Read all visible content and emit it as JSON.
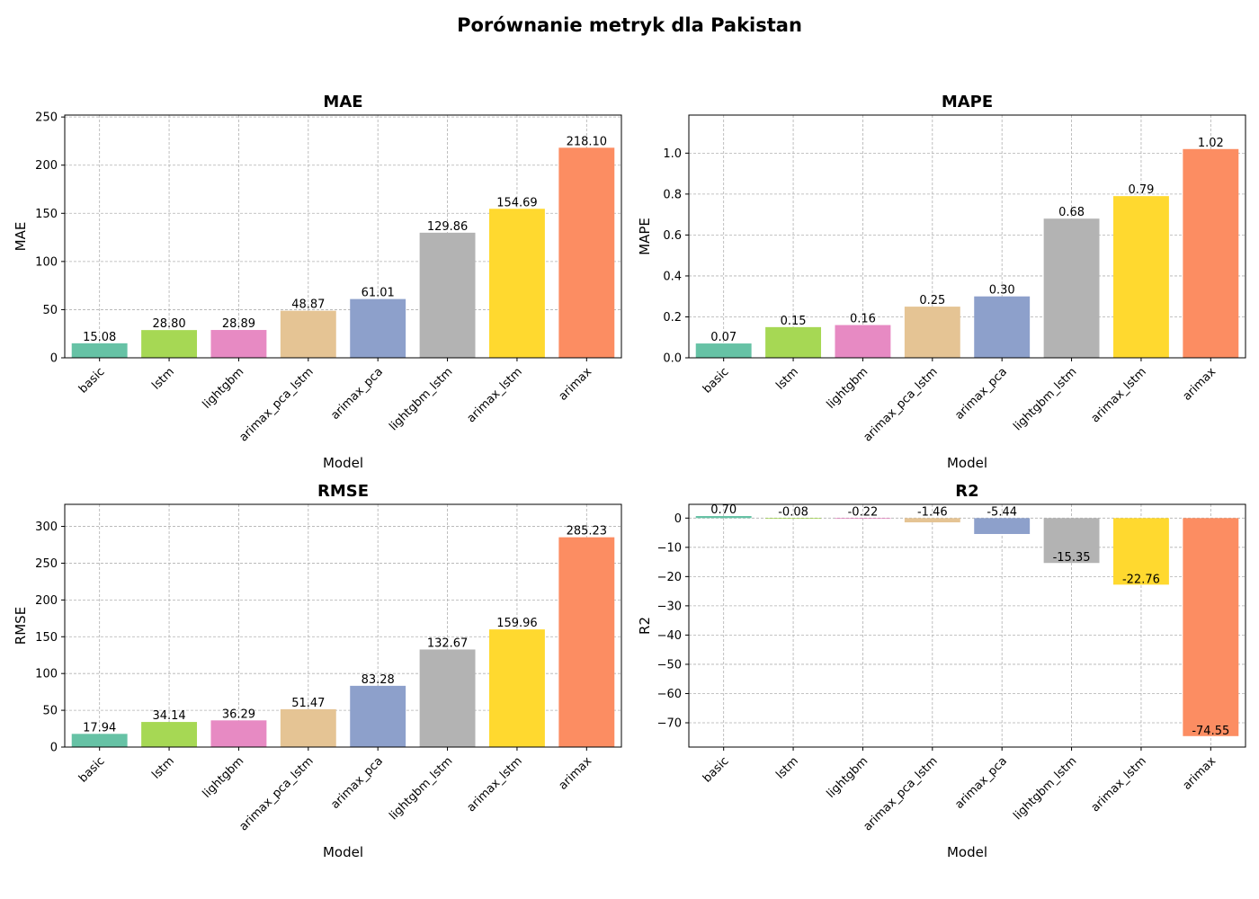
{
  "suptitle": "Porównanie metryk dla Pakistan",
  "chart_data": [
    {
      "type": "bar",
      "title": "MAE",
      "xlabel": "Model",
      "ylabel": "MAE",
      "categories": [
        "basic",
        "lstm",
        "lightgbm",
        "arimax_pca_lstm",
        "arimax_pca",
        "lightgbm_lstm",
        "arimax_lstm",
        "arimax"
      ],
      "values": [
        15.08,
        28.8,
        28.89,
        48.87,
        61.01,
        129.86,
        154.69,
        218.1
      ],
      "value_labels": [
        "15.08",
        "28.80",
        "28.89",
        "48.87",
        "61.01",
        "129.86",
        "154.69",
        "218.10"
      ],
      "ylim": [
        0,
        252
      ],
      "yticks": [
        0,
        50,
        100,
        150,
        200,
        250
      ],
      "ytick_labels": [
        "0",
        "50",
        "100",
        "150",
        "200",
        "250"
      ],
      "grid": true
    },
    {
      "type": "bar",
      "title": "MAPE",
      "xlabel": "Model",
      "ylabel": "MAPE",
      "categories": [
        "basic",
        "lstm",
        "lightgbm",
        "arimax_pca_lstm",
        "arimax_pca",
        "lightgbm_lstm",
        "arimax_lstm",
        "arimax"
      ],
      "values": [
        0.07,
        0.15,
        0.16,
        0.25,
        0.3,
        0.68,
        0.79,
        1.02
      ],
      "value_labels": [
        "0.07",
        "0.15",
        "0.16",
        "0.25",
        "0.30",
        "0.68",
        "0.79",
        "1.02"
      ],
      "ylim": [
        0,
        1.186
      ],
      "yticks": [
        0,
        0.2,
        0.4,
        0.6,
        0.8,
        1.0
      ],
      "ytick_labels": [
        "0.0",
        "0.2",
        "0.4",
        "0.6",
        "0.8",
        "1.0"
      ],
      "grid": true
    },
    {
      "type": "bar",
      "title": "RMSE",
      "xlabel": "Model",
      "ylabel": "RMSE",
      "categories": [
        "basic",
        "lstm",
        "lightgbm",
        "arimax_pca_lstm",
        "arimax_pca",
        "lightgbm_lstm",
        "arimax_lstm",
        "arimax"
      ],
      "values": [
        17.94,
        34.14,
        36.29,
        51.47,
        83.28,
        132.67,
        159.96,
        285.23
      ],
      "value_labels": [
        "17.94",
        "34.14",
        "36.29",
        "51.47",
        "83.28",
        "132.67",
        "159.96",
        "285.23"
      ],
      "ylim": [
        0,
        330
      ],
      "yticks": [
        0,
        50,
        100,
        150,
        200,
        250,
        300
      ],
      "ytick_labels": [
        "0",
        "50",
        "100",
        "150",
        "200",
        "250",
        "300"
      ],
      "grid": true
    },
    {
      "type": "bar",
      "title": "R2",
      "xlabel": "Model",
      "ylabel": "R2",
      "categories": [
        "basic",
        "lstm",
        "lightgbm",
        "arimax_pca_lstm",
        "arimax_pca",
        "lightgbm_lstm",
        "arimax_lstm",
        "arimax"
      ],
      "values": [
        0.7,
        -0.08,
        -0.22,
        -1.46,
        -5.44,
        -15.35,
        -22.76,
        -74.55
      ],
      "value_labels": [
        "0.70",
        "-0.08",
        "-0.22",
        "-1.46",
        "-5.44",
        "-15.35",
        "-22.76",
        "-74.55"
      ],
      "ylim": [
        -78.3,
        4.7
      ],
      "yticks": [
        0,
        -10,
        -20,
        -30,
        -40,
        -50,
        -60,
        -70
      ],
      "ytick_labels": [
        "0",
        "−10",
        "−20",
        "−30",
        "−40",
        "−50",
        "−60",
        "−70"
      ],
      "grid": true
    }
  ],
  "colors": [
    "#66c2a5",
    "#a6d854",
    "#e78ac3",
    "#e5c494",
    "#8da0cb",
    "#b3b3b3",
    "#ffd92f",
    "#fc8d62"
  ]
}
